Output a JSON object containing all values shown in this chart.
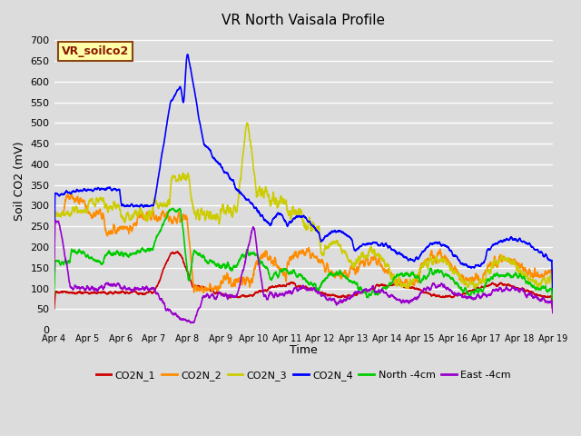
{
  "title": "VR North Vaisala Profile",
  "ylabel": "Soil CO2 (mV)",
  "xlabel": "Time",
  "annotation": "VR_soilco2",
  "ylim": [
    0,
    720
  ],
  "yticks": [
    0,
    50,
    100,
    150,
    200,
    250,
    300,
    350,
    400,
    450,
    500,
    550,
    600,
    650,
    700
  ],
  "bg_color": "#dcdcdc",
  "legend_colors": [
    "#cc0000",
    "#ff8c00",
    "#cccc00",
    "#0000ff",
    "#00cc00",
    "#9900cc"
  ],
  "legend_labels": [
    "CO2N_1",
    "CO2N_2",
    "CO2N_3",
    "CO2N_4",
    "North -4cm",
    "East -4cm"
  ],
  "xtick_labels": [
    "Apr 4",
    "Apr 5",
    "Apr 6",
    "Apr 7",
    "Apr 8",
    "Apr 9",
    "Apr 10",
    "Apr 11",
    "Apr 12",
    "Apr 13",
    "Apr 14",
    "Apr 15",
    "Apr 16",
    "Apr 17",
    "Apr 18",
    "Apr 19"
  ],
  "annotation_box_facecolor": "#ffffaa",
  "annotation_box_edgecolor": "#8b4513"
}
